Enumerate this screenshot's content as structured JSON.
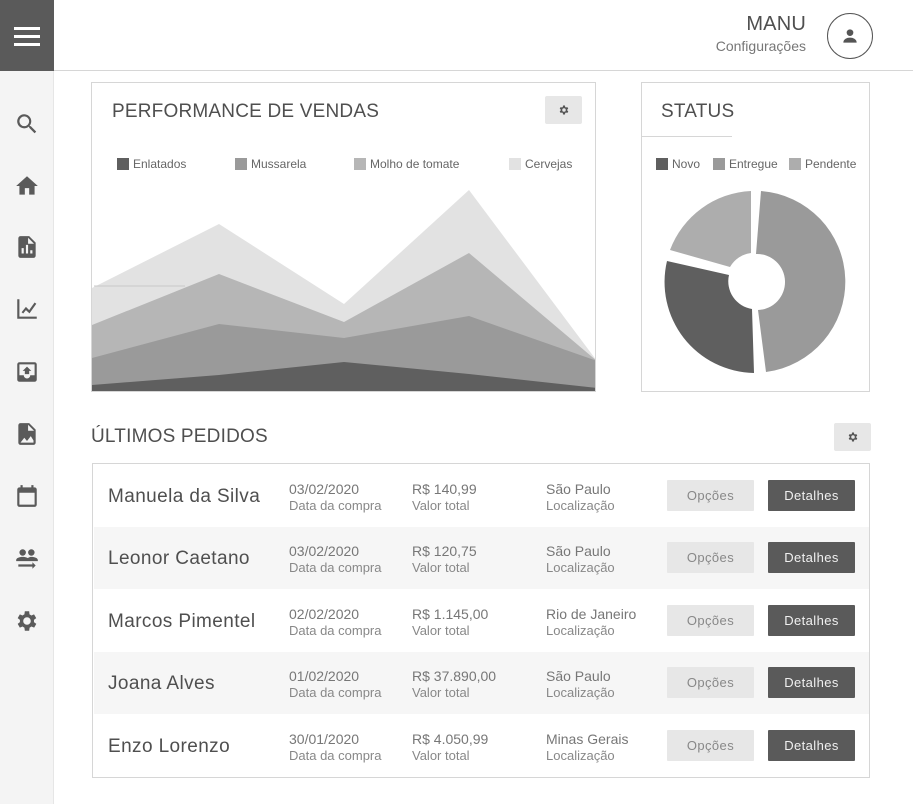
{
  "header": {
    "user_name": "MANU",
    "user_sub": "Configurações"
  },
  "sidebar": {
    "items": [
      {
        "icon": "search-icon"
      },
      {
        "icon": "home-icon"
      },
      {
        "icon": "report-icon"
      },
      {
        "icon": "chart-icon"
      },
      {
        "icon": "upload-icon"
      },
      {
        "icon": "image-file-icon"
      },
      {
        "icon": "calendar-icon"
      },
      {
        "icon": "people-swap-icon"
      },
      {
        "icon": "gear-icon"
      }
    ]
  },
  "performance": {
    "title": "PERFORMANCE DE VENDAS",
    "legend": [
      {
        "label": "Enlatados",
        "color": "#5f5f5f"
      },
      {
        "label": "Mussarela",
        "color": "#9a9a9a"
      },
      {
        "label": "Molho de tomate",
        "color": "#b6b6b6"
      },
      {
        "label": "Cervejas",
        "color": "#e2e2e2"
      }
    ]
  },
  "status": {
    "title": "STATUS",
    "legend": [
      {
        "label": "Novo",
        "color": "#5f5f5f"
      },
      {
        "label": "Entregue",
        "color": "#9a9a9a"
      },
      {
        "label": "Pendente",
        "color": "#adadad"
      }
    ]
  },
  "orders": {
    "title": "ÚLTIMOS PEDIDOS",
    "date_label": "Data da compra",
    "total_label": "Valor total",
    "location_label": "Localização",
    "options_label": "Opções",
    "details_label": "Detalhes",
    "rows": [
      {
        "name": "Manuela da Silva",
        "date": "03/02/2020",
        "total": "R$ 140,99",
        "location": "São Paulo"
      },
      {
        "name": "Leonor Caetano",
        "date": "03/02/2020",
        "total": "R$ 120,75",
        "location": "São Paulo"
      },
      {
        "name": "Marcos Pimentel",
        "date": "02/02/2020",
        "total": "R$ 1.145,00",
        "location": "Rio de Janeiro"
      },
      {
        "name": "Joana Alves",
        "date": "01/02/2020",
        "total": "R$ 37.890,00",
        "location": "São Paulo"
      },
      {
        "name": "Enzo Lorenzo",
        "date": "30/01/2020",
        "total": "R$ 4.050,99",
        "location": "Minas Gerais"
      }
    ]
  }
}
